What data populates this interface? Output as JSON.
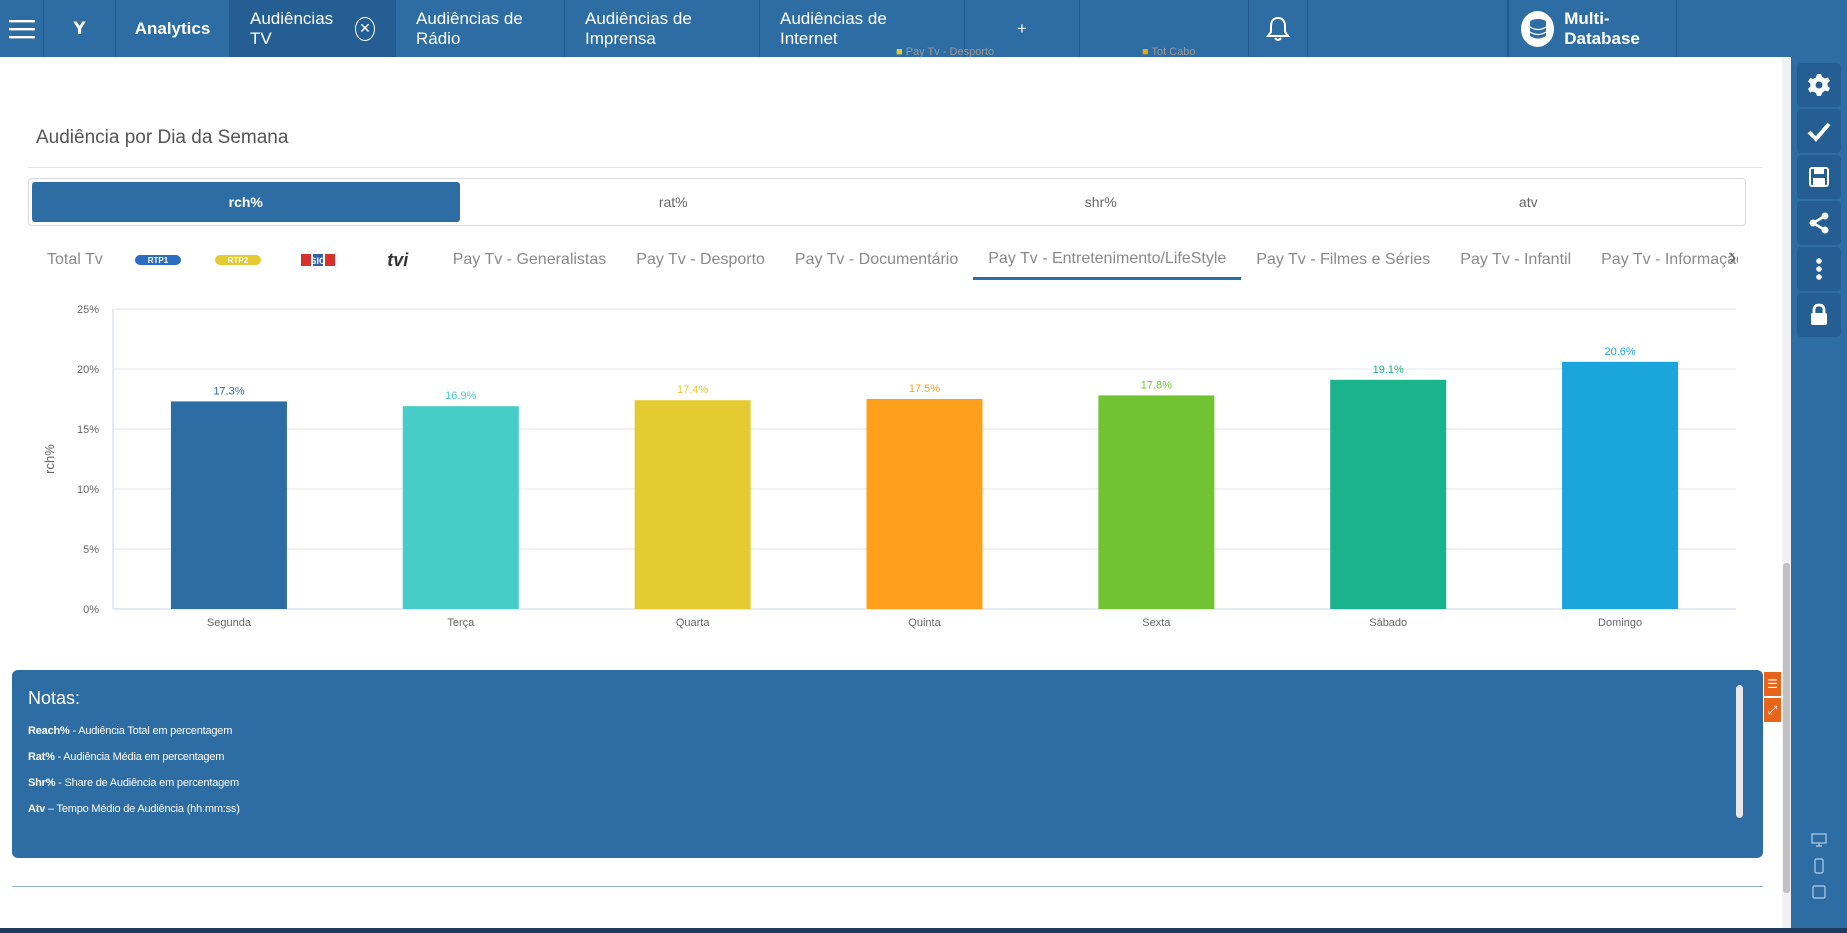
{
  "topbar": {
    "brand": "Y",
    "tabs": [
      {
        "label": "Analytics",
        "active": false
      },
      {
        "label": "Audiências TV",
        "active": true
      },
      {
        "label": "Audiências de Rádio",
        "active": false
      },
      {
        "label": "Audiências de Imprensa",
        "active": false
      },
      {
        "label": "Audiências de Internet",
        "active": false
      }
    ],
    "database_label": "Multi-Database"
  },
  "ghost": {
    "legend1": "Pay Tv - Desporto",
    "legend2": "Tot Cabo"
  },
  "section": {
    "title": "Audiência por Dia da Semana"
  },
  "metrics": {
    "options": [
      "rch%",
      "rat%",
      "shr%",
      "atv"
    ],
    "selected": "rch%"
  },
  "channel_tabs": {
    "items": [
      "Total Tv",
      "RTP1",
      "RTP2",
      "SIC",
      "tvi",
      "Pay Tv - Generalistas",
      "Pay Tv - Desporto",
      "Pay Tv - Documentário",
      "Pay Tv - Entretenimento/LifeStyle",
      "Pay Tv - Filmes e Séries",
      "Pay Tv - Infantil",
      "Pay Tv - Informação"
    ],
    "selected": "Pay Tv - Entretenimento/LifeStyle"
  },
  "chart_data": {
    "type": "bar",
    "categories": [
      "Segunda",
      "Terça",
      "Quarta",
      "Quinta",
      "Sexta",
      "Sábado",
      "Domingo"
    ],
    "values": [
      17.3,
      16.9,
      17.4,
      17.5,
      17.8,
      19.1,
      20.6
    ],
    "value_labels": [
      "17.3%",
      "16.9%",
      "17.4%",
      "17.5%",
      "17.8%",
      "19.1%",
      "20.6%"
    ],
    "colors": [
      "#2e6da4",
      "#46cdc8",
      "#e4cb31",
      "#ff9f1c",
      "#70c432",
      "#1ab38b",
      "#1aa5dc"
    ],
    "label_colors": [
      "#2e6da4",
      "#46cdc8",
      "#e4cb31",
      "#ff9f1c",
      "#70c432",
      "#1ab38b",
      "#1aa5dc"
    ],
    "ylabel": "rch%",
    "yticks": [
      "0%",
      "5%",
      "10%",
      "15%",
      "20%",
      "25%"
    ],
    "ylim": [
      0,
      25
    ],
    "grid": true
  },
  "notes": {
    "title": "Notas:",
    "items": [
      {
        "term": "Reach%",
        "text": " - Audiência Total em percentagem"
      },
      {
        "term": "Rat%",
        "text": " - Audiência Média em percentagem"
      },
      {
        "term": "Shr%",
        "text": " - Share de Audiência em percentagem"
      },
      {
        "term": "Atv",
        "text": " – Tempo Médio de Audiência (hh:mm:ss)"
      }
    ]
  },
  "icons": {
    "menu": "hamburger-icon",
    "close": "close-circle-icon",
    "add": "plus-icon",
    "notifications": "bell-icon",
    "database": "database-icon",
    "side": [
      "gear-icon",
      "check-icon",
      "save-icon",
      "share-icon",
      "more-icon",
      "lock-icon"
    ],
    "devices": [
      "desktop-icon",
      "phone-icon",
      "tablet-icon"
    ]
  }
}
